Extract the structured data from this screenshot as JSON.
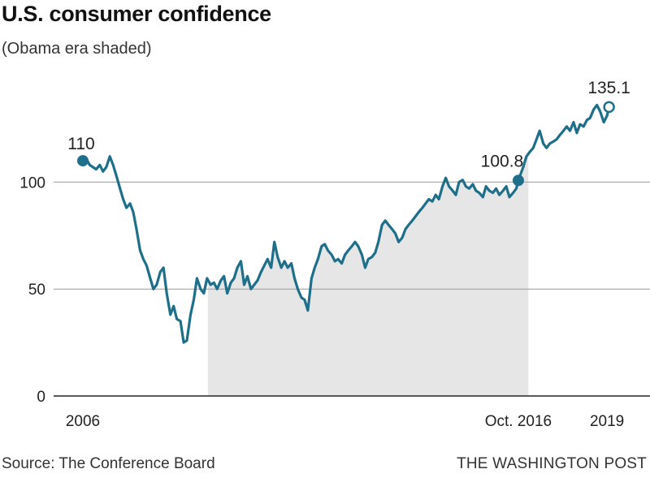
{
  "header": {
    "title": "U.S. consumer confidence",
    "subtitle": "(Obama era shaded)"
  },
  "footer": {
    "source": "Source: The Conference Board",
    "credit": "THE WASHINGTON POST"
  },
  "colors": {
    "line": "#1e6f8a",
    "shade": "#e6e6e6",
    "grid": "#9a9a9a",
    "axis": "#222222"
  },
  "chart_data": {
    "type": "line",
    "title": "U.S. consumer confidence",
    "subtitle": "(Obama era shaded)",
    "xlabel": "",
    "ylabel": "",
    "ylim": [
      0,
      140
    ],
    "xlim": [
      2006.0,
      2019.3
    ],
    "y_ticks": [
      {
        "value": 0,
        "label": "0"
      },
      {
        "value": 50,
        "label": "50"
      },
      {
        "value": 100,
        "label": "100"
      }
    ],
    "x_ticks": [
      {
        "value": 2006.0,
        "label": "2006"
      },
      {
        "value": 2016.8,
        "label": "Oct. 2016"
      },
      {
        "value": 2019.0,
        "label": "2019"
      }
    ],
    "shaded_range": [
      2009.1,
      2017.05
    ],
    "grid": true,
    "legend": "none",
    "annotations": [
      {
        "x": 2006.0,
        "y": 110,
        "label": "110",
        "marker": "filled"
      },
      {
        "x": 2016.8,
        "y": 100.8,
        "label": "100.8",
        "marker": "filled"
      },
      {
        "x": 2019.05,
        "y": 135.1,
        "label": "135.1",
        "marker": "open"
      }
    ],
    "series": [
      {
        "x": [
          2006.0,
          2006.08,
          2006.17,
          2006.25,
          2006.33,
          2006.42,
          2006.5,
          2006.58,
          2006.67,
          2006.75,
          2006.83,
          2006.92,
          2007.0,
          2007.08,
          2007.17,
          2007.25,
          2007.33,
          2007.42,
          2007.5,
          2007.58,
          2007.67,
          2007.75,
          2007.83,
          2007.92,
          2008.0,
          2008.08,
          2008.17,
          2008.25,
          2008.33,
          2008.42,
          2008.5,
          2008.58,
          2008.67,
          2008.75,
          2008.83,
          2008.92,
          2009.0,
          2009.08,
          2009.17,
          2009.25,
          2009.33,
          2009.42,
          2009.5,
          2009.58,
          2009.67,
          2009.75,
          2009.83,
          2009.92,
          2010.0,
          2010.08,
          2010.17,
          2010.25,
          2010.33,
          2010.42,
          2010.5,
          2010.58,
          2010.67,
          2010.75,
          2010.83,
          2010.92,
          2011.0,
          2011.08,
          2011.17,
          2011.25,
          2011.33,
          2011.42,
          2011.5,
          2011.58,
          2011.67,
          2011.75,
          2011.83,
          2011.92,
          2012.0,
          2012.08,
          2012.17,
          2012.25,
          2012.33,
          2012.42,
          2012.5,
          2012.58,
          2012.67,
          2012.75,
          2012.83,
          2012.92,
          2013.0,
          2013.08,
          2013.17,
          2013.25,
          2013.33,
          2013.42,
          2013.5,
          2013.58,
          2013.67,
          2013.75,
          2013.83,
          2013.92,
          2014.0,
          2014.08,
          2014.17,
          2014.25,
          2014.33,
          2014.42,
          2014.5,
          2014.58,
          2014.67,
          2014.75,
          2014.83,
          2014.92,
          2015.0,
          2015.08,
          2015.17,
          2015.25,
          2015.33,
          2015.42,
          2015.5,
          2015.58,
          2015.67,
          2015.75,
          2015.83,
          2015.92,
          2016.0,
          2016.08,
          2016.17,
          2016.25,
          2016.33,
          2016.42,
          2016.5,
          2016.58,
          2016.67,
          2016.75,
          2016.8,
          2016.92,
          2017.0,
          2017.08,
          2017.17,
          2017.25,
          2017.33,
          2017.42,
          2017.5,
          2017.58,
          2017.67,
          2017.75,
          2017.83,
          2017.92,
          2018.0,
          2018.08,
          2018.17,
          2018.25,
          2018.33,
          2018.42,
          2018.5,
          2018.58,
          2018.67,
          2018.75,
          2018.83,
          2018.92,
          2019.0,
          2019.05
        ],
        "values": [
          110,
          111,
          108,
          107,
          106,
          108,
          105,
          107,
          112,
          108,
          103,
          97,
          92,
          88,
          90,
          86,
          78,
          68,
          64,
          61,
          55,
          50,
          52,
          58,
          60,
          48,
          38,
          42,
          36,
          35,
          25,
          26,
          38,
          45,
          55,
          50,
          48,
          55,
          52,
          53,
          50,
          54,
          56,
          48,
          53,
          55,
          60,
          63,
          52,
          56,
          50,
          52,
          54,
          58,
          61,
          64,
          60,
          72,
          65,
          60,
          63,
          60,
          62,
          55,
          50,
          46,
          45,
          40,
          55,
          60,
          64,
          70,
          71,
          68,
          66,
          63,
          64,
          62,
          66,
          68,
          70,
          72,
          70,
          66,
          60,
          64,
          65,
          67,
          72,
          80,
          82,
          80,
          78,
          76,
          72,
          74,
          78,
          80,
          82,
          84,
          86,
          88,
          90,
          92,
          91,
          94,
          92,
          98,
          102,
          98,
          96,
          94,
          100,
          101,
          98,
          97,
          99,
          96,
          95,
          93,
          98,
          96,
          95,
          97,
          94,
          96,
          98,
          93,
          95,
          97,
          100.8,
          107,
          112,
          114,
          116,
          120,
          124,
          118,
          116,
          118,
          119,
          120,
          122,
          124,
          126,
          124,
          128,
          123,
          127,
          126,
          129,
          130,
          134,
          136,
          133,
          128,
          131,
          135.1
        ]
      }
    ]
  }
}
